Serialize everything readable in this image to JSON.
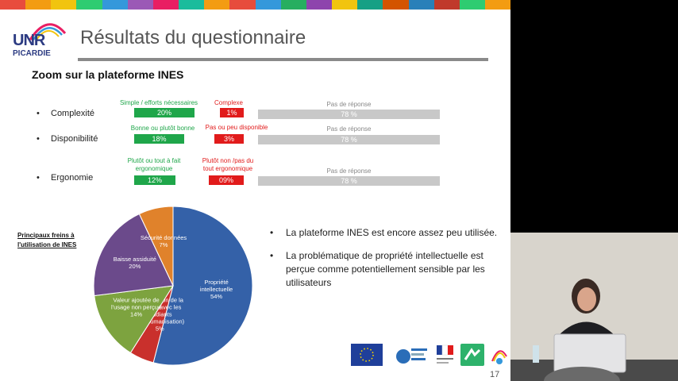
{
  "colors": {
    "stripe": [
      "#e84c3d",
      "#f39c12",
      "#f1c40f",
      "#2ecc71",
      "#3498db",
      "#9b59b6",
      "#e91e63",
      "#1abc9c",
      "#f39c12",
      "#e74c3c",
      "#3498db",
      "#27ae60",
      "#8e44ad",
      "#f1c40f",
      "#16a085",
      "#d35400",
      "#2980b9",
      "#c0392b",
      "#2ecc71",
      "#f39c12"
    ],
    "green": "#1fa64a",
    "red": "#e11b1b",
    "grey": "#c8c8c8",
    "pie": [
      "#3461a8",
      "#c9302c",
      "#7da33f",
      "#6b4a8b",
      "#e0822b"
    ]
  },
  "logo": {
    "top": "UNR",
    "bottom": "PICARDIE"
  },
  "slide": {
    "title": "Résultats du questionnaire",
    "subtitle": "Zoom sur la plateforme INES",
    "bullet_char": "•",
    "page_number": "17"
  },
  "survey": [
    {
      "criterion": "Complexité",
      "pos_label": "Simple / efforts nécessaires",
      "pos_value": "20%",
      "neg_label": "Complexe",
      "neg_value": "1%",
      "na_label": "Pas de réponse",
      "na_value": "78 %"
    },
    {
      "criterion": "Disponibilité",
      "pos_label": "Bonne ou plutôt bonne",
      "pos_value": "18%",
      "neg_label": "Pas ou peu disponible",
      "neg_value": "3%",
      "na_label": "Pas de réponse",
      "na_value": "78 %"
    },
    {
      "criterion": "Ergonomie",
      "pos_label": "Plutôt ou tout à fait ergonomique",
      "pos_value": "12%",
      "neg_label": "Plutôt non /pas du tout ergonomique",
      "neg_value": "09%",
      "na_label": "Pas de réponse",
      "na_value": "78 %"
    }
  ],
  "freins_label": "Principaux freins à l'utilisation de INES",
  "chart_data": {
    "type": "pie",
    "title": "",
    "slices": [
      {
        "label": "Propriété intellectuelle",
        "value": 54,
        "text": "54%"
      },
      {
        "label": "Dégradation de la relation avec les étudiants (deshumanisation)",
        "value": 5,
        "text": "5%"
      },
      {
        "label": "Valeur ajoutée de l'usage non perçue",
        "value": 14,
        "text": "14%"
      },
      {
        "label": "Baisse assiduité",
        "value": 20,
        "text": "20%"
      },
      {
        "label": "Sécurité données",
        "value": 7,
        "text": "7%"
      }
    ]
  },
  "bullets": [
    "La plateforme INES est encore assez peu utilisée.",
    "La problématique de propriété intellectuelle est perçue comme potentiellement sensible par les utilisateurs"
  ],
  "partner_logos": [
    "eu-flag-logo",
    "europe-picardie-logo",
    "republique-francaise-logo",
    "upjv-logo",
    "unr-picardie-small-logo"
  ]
}
